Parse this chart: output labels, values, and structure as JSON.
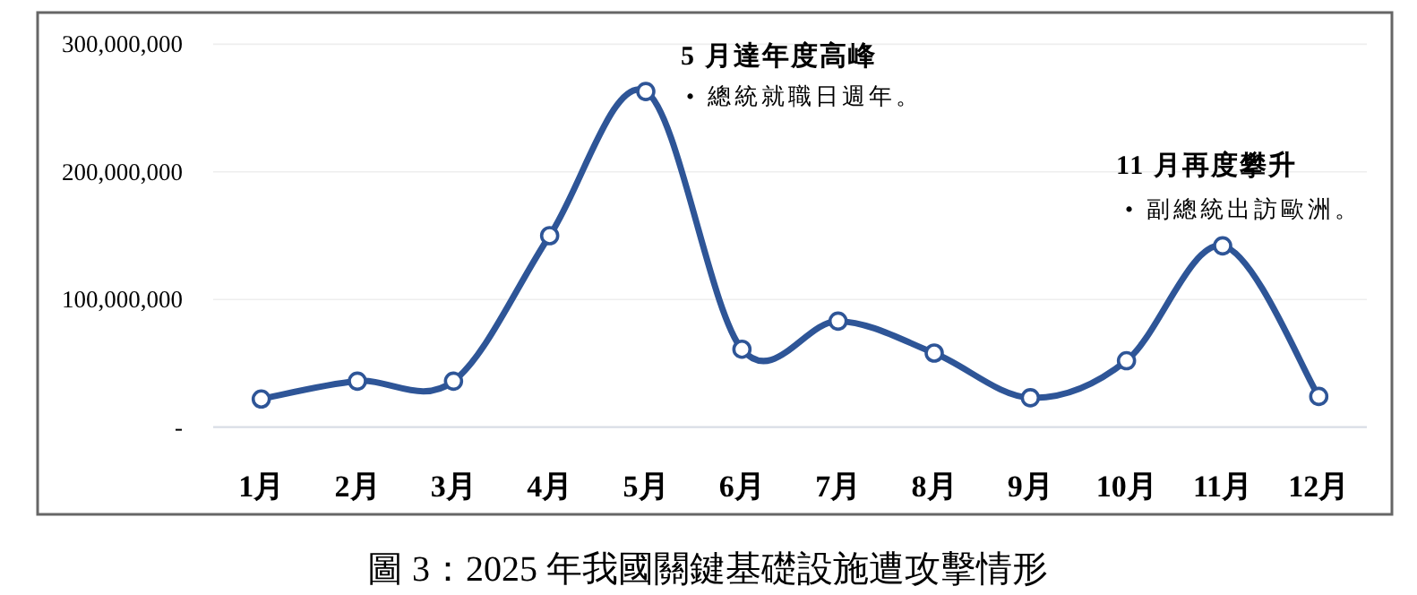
{
  "chart_data": {
    "type": "line",
    "title": "圖 3：2025 年我國關鍵基礎設施遭攻擊情形",
    "categories": [
      "1月",
      "2月",
      "3月",
      "4月",
      "5月",
      "6月",
      "7月",
      "8月",
      "9月",
      "10月",
      "11月",
      "12月"
    ],
    "series": [
      {
        "color": "#2e5597",
        "values": [
          22000000,
          36000000,
          36000000,
          150000000,
          263000000,
          61000000,
          83000000,
          58000000,
          23000000,
          52000000,
          142000000,
          24000000
        ]
      }
    ],
    "ylim": [
      0,
      300000000
    ],
    "yticks": [
      {
        "value": 0,
        "label": "-"
      },
      {
        "value": 100000000,
        "label": "100,000,000"
      },
      {
        "value": 200000000,
        "label": "200,000,000"
      },
      {
        "value": 300000000,
        "label": "300,000,000"
      }
    ],
    "grid": "y",
    "marker": "circle",
    "line_style": "solid",
    "annotations": [
      "5 月達年度高峰",
      "• 總統就職日週年。",
      "11 月再度攀升",
      "• 副總統出訪歐洲。"
    ]
  }
}
